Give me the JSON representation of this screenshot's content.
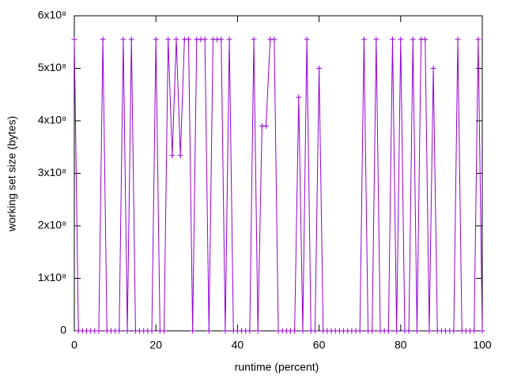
{
  "chart_data": {
    "type": "line",
    "xlabel": "runtime (percent)",
    "ylabel": "working set size (bytes)",
    "x": [
      0,
      1,
      2,
      3,
      4,
      5,
      6,
      7,
      8,
      9,
      10,
      11,
      12,
      13,
      14,
      15,
      16,
      17,
      18,
      19,
      20,
      21,
      22,
      23,
      24,
      25,
      26,
      27,
      28,
      29,
      30,
      31,
      32,
      33,
      34,
      35,
      36,
      37,
      38,
      39,
      40,
      41,
      42,
      43,
      44,
      45,
      46,
      47,
      48,
      49,
      50,
      51,
      52,
      53,
      54,
      55,
      56,
      57,
      58,
      59,
      60,
      61,
      62,
      63,
      64,
      65,
      66,
      67,
      68,
      69,
      70,
      71,
      72,
      73,
      74,
      75,
      76,
      77,
      78,
      79,
      80,
      81,
      82,
      83,
      84,
      85,
      86,
      87,
      88,
      89,
      90,
      91,
      92,
      93,
      94,
      95,
      96,
      97,
      98,
      99,
      100
    ],
    "series": [
      {
        "color": "#9400d3",
        "values": [
          555000000,
          0,
          0,
          0,
          0,
          0,
          0,
          555000000,
          0,
          0,
          0,
          0,
          555000000,
          0,
          555000000,
          0,
          0,
          0,
          0,
          0,
          555000000,
          0,
          0,
          555000000,
          334000000,
          555000000,
          334000000,
          555000000,
          555000000,
          0,
          555000000,
          555000000,
          555000000,
          0,
          555000000,
          555000000,
          555000000,
          0,
          555000000,
          0,
          0,
          0,
          0,
          0,
          555000000,
          0,
          390000000,
          390000000,
          555000000,
          555000000,
          0,
          0,
          0,
          0,
          0,
          445000000,
          0,
          555000000,
          0,
          0,
          500000000,
          0,
          0,
          0,
          0,
          0,
          0,
          0,
          0,
          0,
          0,
          555000000,
          0,
          0,
          555000000,
          0,
          0,
          0,
          555000000,
          0,
          555000000,
          0,
          0,
          555000000,
          0,
          555000000,
          555000000,
          0,
          500000000,
          0,
          0,
          0,
          0,
          0,
          555000000,
          0,
          0,
          0,
          0,
          555000000,
          0
        ]
      }
    ],
    "xlim": [
      0,
      100
    ],
    "xticks": [
      0,
      20,
      40,
      60,
      80,
      100
    ],
    "ylim": [
      0,
      600000000
    ],
    "yticks": [
      0,
      {
        "value": 100000000,
        "label": "1x10⁸"
      },
      {
        "value": 200000000,
        "label": "2x10⁸"
      },
      {
        "value": 300000000,
        "label": "3x10⁸"
      },
      {
        "value": 400000000,
        "label": "4x10⁸"
      },
      {
        "value": 500000000,
        "label": "5x10⁸"
      },
      {
        "value": 600000000,
        "label": "6x10⁸"
      }
    ]
  }
}
